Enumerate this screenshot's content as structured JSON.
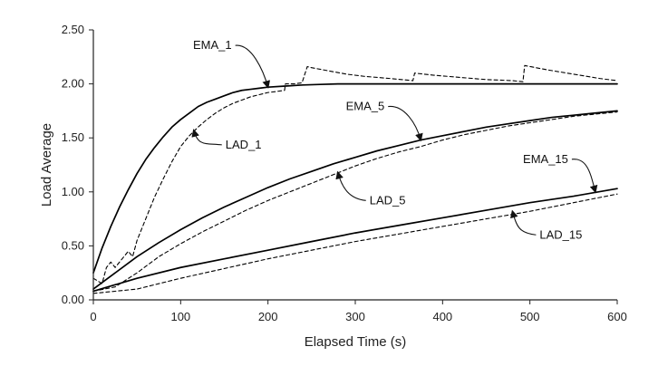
{
  "chart_data": {
    "type": "line",
    "title": "",
    "xlabel": "Elapsed Time (s)",
    "ylabel": "Load Average",
    "xlim": [
      0,
      600
    ],
    "ylim": [
      0,
      2.5
    ],
    "x_ticks": [
      0,
      100,
      200,
      300,
      400,
      500,
      600
    ],
    "y_ticks": [
      0.0,
      0.5,
      1.0,
      1.5,
      2.0,
      2.5
    ],
    "x_tick_labels": [
      "0",
      "100",
      "200",
      "300",
      "400",
      "500",
      "600"
    ],
    "y_tick_labels": [
      "0.00",
      "0.50",
      "1.00",
      "1.50",
      "2.00",
      "2.50"
    ],
    "grid": false,
    "legend": "none",
    "series": [
      {
        "name": "EMA_1",
        "style": "solid",
        "color": "#000000",
        "x": [
          0,
          10,
          20,
          30,
          40,
          50,
          60,
          70,
          80,
          90,
          100,
          110,
          120,
          130,
          140,
          150,
          160,
          170,
          180,
          190,
          200,
          220,
          240,
          260,
          280,
          300,
          350,
          400,
          450,
          500,
          550,
          600
        ],
        "y": [
          0.25,
          0.48,
          0.68,
          0.86,
          1.02,
          1.17,
          1.3,
          1.41,
          1.51,
          1.6,
          1.67,
          1.73,
          1.79,
          1.83,
          1.86,
          1.89,
          1.92,
          1.94,
          1.95,
          1.96,
          1.97,
          1.98,
          1.99,
          1.995,
          2.0,
          2.0,
          2.0,
          2.0,
          2.0,
          2.0,
          2.0,
          2.0
        ]
      },
      {
        "name": "LAD_1",
        "style": "dashed",
        "color": "#000000",
        "x": [
          0,
          10,
          15,
          20,
          25,
          30,
          35,
          40,
          45,
          50,
          60,
          70,
          80,
          90,
          100,
          110,
          120,
          130,
          140,
          150,
          160,
          170,
          180,
          190,
          200,
          210,
          219,
          220,
          230,
          239,
          245,
          250,
          270,
          290,
          310,
          340,
          366,
          368,
          390,
          420,
          450,
          480,
          492,
          494,
          520,
          550,
          580,
          600
        ],
        "y": [
          0.2,
          0.15,
          0.3,
          0.35,
          0.3,
          0.35,
          0.4,
          0.45,
          0.4,
          0.55,
          0.75,
          0.95,
          1.12,
          1.28,
          1.42,
          1.52,
          1.6,
          1.67,
          1.73,
          1.78,
          1.82,
          1.85,
          1.88,
          1.9,
          1.92,
          1.93,
          1.94,
          2.0,
          2.0,
          2.01,
          2.16,
          2.15,
          2.12,
          2.09,
          2.07,
          2.05,
          2.03,
          2.1,
          2.08,
          2.06,
          2.04,
          2.03,
          2.02,
          2.17,
          2.13,
          2.09,
          2.05,
          2.03
        ]
      },
      {
        "name": "EMA_5",
        "style": "solid",
        "color": "#000000",
        "x": [
          0,
          25,
          50,
          75,
          100,
          125,
          150,
          175,
          200,
          225,
          250,
          275,
          300,
          325,
          350,
          375,
          400,
          425,
          450,
          475,
          500,
          525,
          550,
          575,
          600
        ],
        "y": [
          0.1,
          0.25,
          0.4,
          0.53,
          0.65,
          0.76,
          0.86,
          0.95,
          1.04,
          1.12,
          1.19,
          1.26,
          1.32,
          1.38,
          1.43,
          1.48,
          1.52,
          1.56,
          1.6,
          1.63,
          1.66,
          1.69,
          1.71,
          1.73,
          1.75
        ]
      },
      {
        "name": "LAD_5",
        "style": "dashed",
        "color": "#000000",
        "x": [
          0,
          25,
          50,
          75,
          100,
          125,
          150,
          175,
          200,
          225,
          250,
          275,
          300,
          325,
          350,
          375,
          400,
          425,
          450,
          475,
          500,
          525,
          550,
          575,
          600
        ],
        "y": [
          0.08,
          0.12,
          0.25,
          0.4,
          0.52,
          0.63,
          0.73,
          0.83,
          0.92,
          1.0,
          1.08,
          1.16,
          1.24,
          1.31,
          1.37,
          1.42,
          1.48,
          1.53,
          1.57,
          1.61,
          1.64,
          1.67,
          1.7,
          1.72,
          1.74
        ]
      },
      {
        "name": "EMA_15",
        "style": "solid",
        "color": "#000000",
        "x": [
          0,
          50,
          100,
          150,
          200,
          250,
          300,
          350,
          400,
          450,
          500,
          550,
          600
        ],
        "y": [
          0.08,
          0.2,
          0.3,
          0.38,
          0.46,
          0.54,
          0.62,
          0.69,
          0.76,
          0.83,
          0.9,
          0.96,
          1.03
        ]
      },
      {
        "name": "LAD_15",
        "style": "dashed",
        "color": "#000000",
        "x": [
          0,
          50,
          100,
          150,
          200,
          250,
          300,
          350,
          400,
          450,
          500,
          550,
          600
        ],
        "y": [
          0.06,
          0.1,
          0.2,
          0.29,
          0.38,
          0.46,
          0.54,
          0.61,
          0.68,
          0.75,
          0.82,
          0.9,
          0.98
        ]
      }
    ],
    "annotations": [
      {
        "text": "EMA_1",
        "target_series": "EMA_1",
        "target": [
          200,
          1.97
        ]
      },
      {
        "text": "LAD_1",
        "target_series": "LAD_1",
        "target": [
          115,
          1.57
        ]
      },
      {
        "text": "EMA_5",
        "target_series": "EMA_5",
        "target": [
          375,
          1.48
        ]
      },
      {
        "text": "LAD_5",
        "target_series": "LAD_5",
        "target": [
          280,
          1.18
        ]
      },
      {
        "text": "EMA_15",
        "target_series": "EMA_15",
        "target": [
          575,
          1.0
        ]
      },
      {
        "text": "LAD_15",
        "target_series": "LAD_15",
        "target": [
          480,
          0.82
        ]
      }
    ]
  }
}
